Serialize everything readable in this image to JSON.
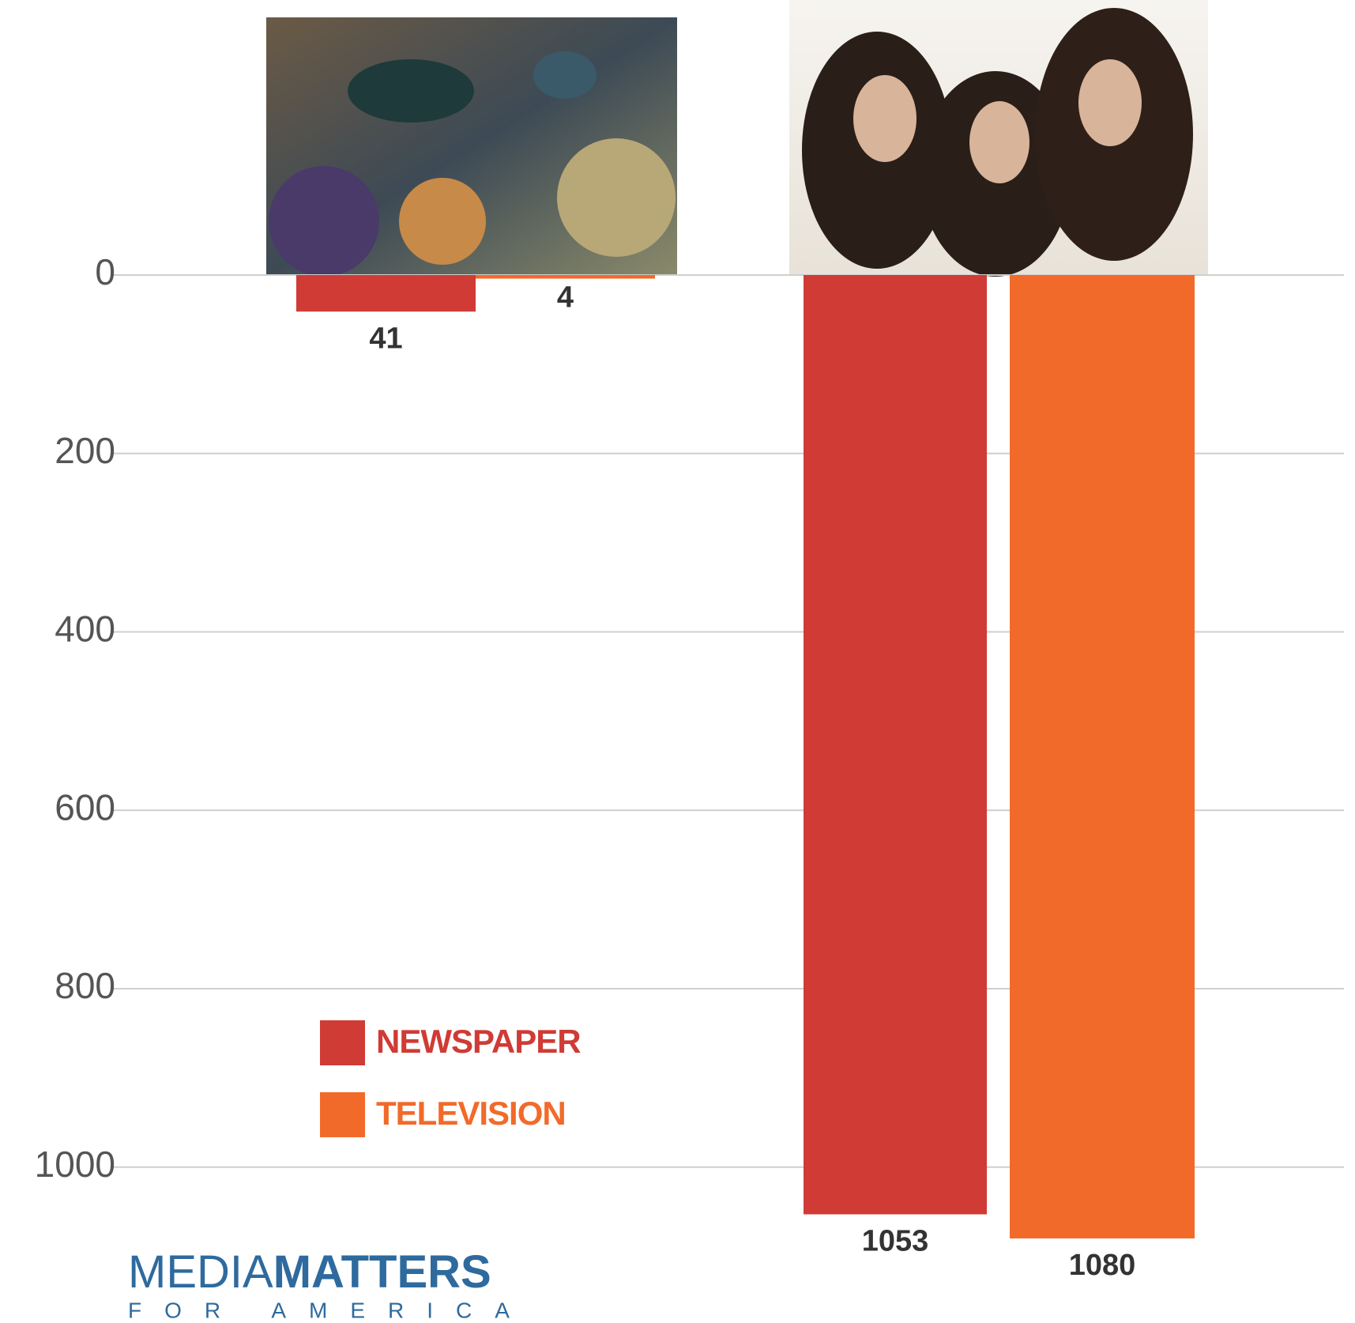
{
  "chart_data": {
    "type": "bar",
    "categories": [
      null,
      null
    ],
    "series": [
      {
        "name": "NEWSPAPER",
        "color": "#d03b35",
        "values": [
          41,
          1053
        ]
      },
      {
        "name": "TELEVISION",
        "color": "#f26a2a",
        "values": [
          4,
          1080
        ]
      }
    ],
    "ylim": [
      0,
      1150
    ],
    "yticks": [
      0,
      200,
      400,
      600,
      800,
      1000
    ],
    "y_inverted": true,
    "grid": true,
    "legend": "lower-left",
    "value_labels_shown": true
  },
  "logo": {
    "first": "MEDIA",
    "second": "MATTERS",
    "tagline": "FOR AMERICA"
  }
}
